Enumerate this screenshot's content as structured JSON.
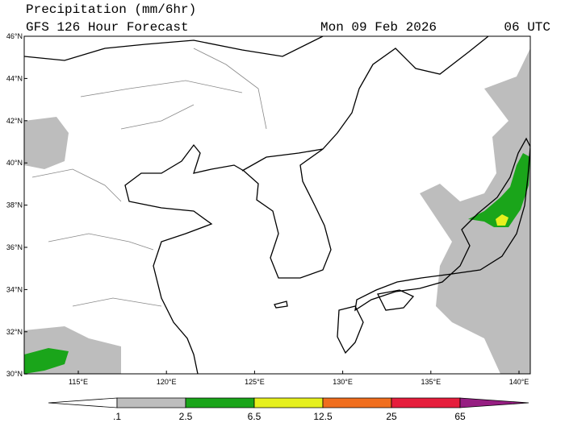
{
  "header": {
    "title": "Precipitation (mm/6hr)",
    "subtitle": "GFS 126 Hour Forecast",
    "date": "Mon 09 Feb 2026",
    "time": "06 UTC"
  },
  "map": {
    "lat_labels": [
      "46°N",
      "44°N",
      "42°N",
      "40°N",
      "38°N",
      "36°N",
      "34°N",
      "32°N",
      "30°N"
    ],
    "lon_labels": [
      "115°E",
      "120°E",
      "125°E",
      "130°E",
      "135°E",
      "140°E"
    ]
  },
  "colorbar": {
    "colors": [
      "#ffffff",
      "#bdbdbd",
      "#1aa51a",
      "#e6f01e",
      "#f06e1e",
      "#e61e3c",
      "#961e82"
    ],
    "labels": [
      ".1",
      "2.5",
      "6.5",
      "12.5",
      "25",
      "65"
    ]
  }
}
